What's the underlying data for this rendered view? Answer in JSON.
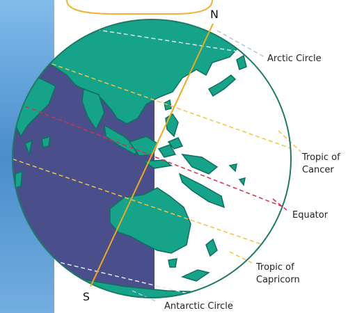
{
  "diagram": {
    "poles": {
      "north": "N",
      "south": "S"
    },
    "labels": {
      "arctic_circle": "Arctic Circle",
      "tropic_cancer_line1": "Tropic of",
      "tropic_cancer_line2": "Cancer",
      "equator": "Equator",
      "tropic_capricorn_line1": "Tropic of",
      "tropic_capricorn_line2": "Capricorn",
      "antarctic_circle": "Antarctic Circle"
    },
    "colors": {
      "land": "#15a38a",
      "land_outline": "#0f6e5e",
      "night_side": "#4a4f8c",
      "globe_outline": "#1d7a66",
      "axis": "#f0a81c",
      "equator": "#d6304d",
      "tropics": "#f5c242",
      "polar_circles": "#a8c8e8",
      "side_panel_top": "#6db0e6",
      "side_panel_bottom": "#2c6fae",
      "badge_outline": "#f0b233"
    }
  }
}
